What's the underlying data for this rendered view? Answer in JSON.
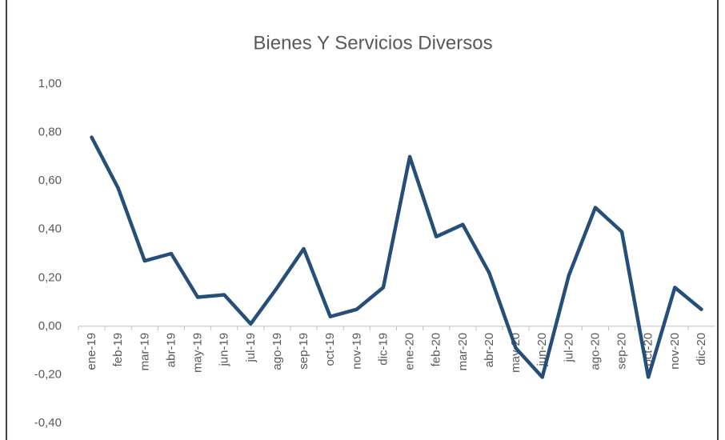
{
  "chart_data": {
    "type": "line",
    "title": "Bienes Y Servicios Diversos",
    "categories": [
      "ene-19",
      "feb-19",
      "mar-19",
      "abr-19",
      "may-19",
      "jun-19",
      "jul-19",
      "ago-19",
      "sep-19",
      "oct-19",
      "nov-19",
      "dic-19",
      "ene-20",
      "feb-20",
      "mar-20",
      "abr-20",
      "may-20",
      "jun-20",
      "jul-20",
      "ago-20",
      "sep-20",
      "oct-20",
      "nov-20",
      "dic-20"
    ],
    "values": [
      0.78,
      0.57,
      0.27,
      0.3,
      0.12,
      0.13,
      0.01,
      0.16,
      0.32,
      0.04,
      0.07,
      0.16,
      0.7,
      0.37,
      0.42,
      0.22,
      -0.09,
      -0.21,
      0.21,
      0.49,
      0.39,
      -0.21,
      0.16,
      0.07
    ],
    "color": "#254e78",
    "ylim": [
      -0.4,
      1.0
    ],
    "yticks": [
      {
        "value": -0.4,
        "label": "-0,40"
      },
      {
        "value": -0.2,
        "label": "-0,20"
      },
      {
        "value": 0,
        "label": "0,00"
      },
      {
        "value": 0.2,
        "label": "0,20"
      },
      {
        "value": 0.4,
        "label": "0,40"
      },
      {
        "value": 0.6,
        "label": "0,60"
      },
      {
        "value": 0.8,
        "label": "0,80"
      },
      {
        "value": 1.0,
        "label": "1,00"
      }
    ],
    "grid": false
  }
}
